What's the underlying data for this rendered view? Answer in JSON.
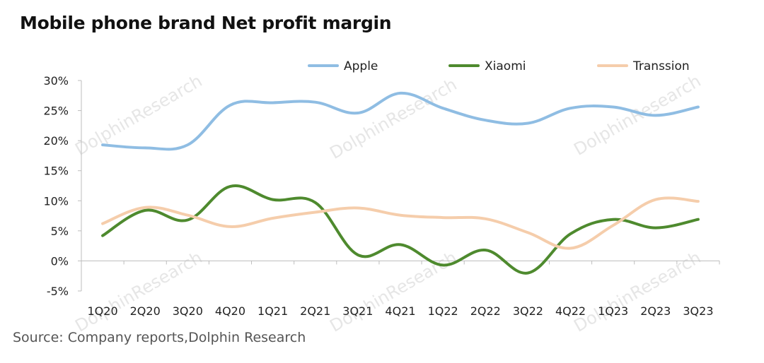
{
  "title": "Mobile phone brand Net profit margin",
  "source": "Source: Company reports,Dolphin Research",
  "watermark": "DolphinResearch",
  "chart_data": {
    "type": "line",
    "categories": [
      "1Q20",
      "2Q20",
      "3Q20",
      "4Q20",
      "1Q21",
      "2Q21",
      "3Q21",
      "4Q21",
      "1Q22",
      "2Q22",
      "3Q22",
      "4Q22",
      "1Q23",
      "2Q23",
      "3Q23"
    ],
    "ylim": [
      -5,
      30
    ],
    "yticks": [
      -5,
      0,
      5,
      10,
      15,
      20,
      25,
      30
    ],
    "ytick_labels": [
      "-5%",
      "0%",
      "5%",
      "10%",
      "15%",
      "20%",
      "25%",
      "30%"
    ],
    "legend_position": "top",
    "grid": false,
    "series": [
      {
        "name": "Apple",
        "color": "#8fbde3",
        "values": [
          19.3,
          18.8,
          19.3,
          25.9,
          26.3,
          26.4,
          24.6,
          27.9,
          25.4,
          23.4,
          22.9,
          25.4,
          25.6,
          24.2,
          25.6
        ]
      },
      {
        "name": "Xiaomi",
        "color": "#4e8a2e",
        "values": [
          4.2,
          8.4,
          6.8,
          12.4,
          10.2,
          9.7,
          1.0,
          2.7,
          -0.7,
          1.8,
          -2.0,
          4.5,
          6.9,
          5.5,
          6.9
        ]
      },
      {
        "name": "Transsion",
        "color": "#f5cdab",
        "values": [
          6.2,
          8.9,
          7.6,
          5.7,
          7.1,
          8.1,
          8.8,
          7.6,
          7.2,
          7.0,
          4.7,
          2.1,
          5.9,
          10.2,
          9.9
        ]
      }
    ]
  }
}
